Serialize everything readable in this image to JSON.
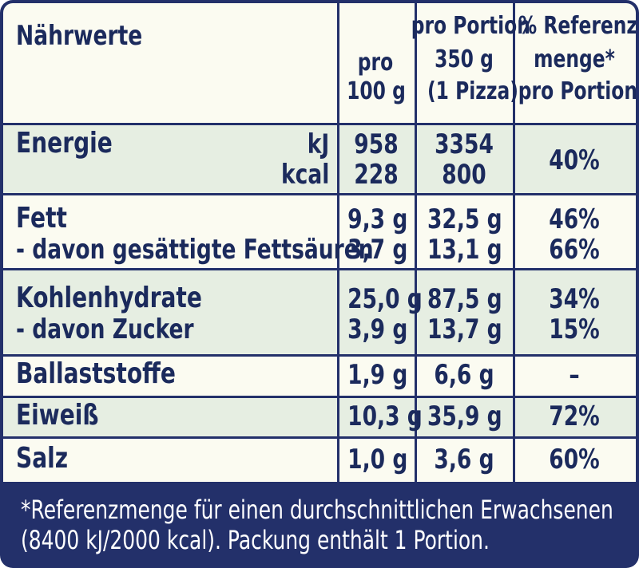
{
  "header": {
    "title": "Nährwerte",
    "col_100g_line1": "pro",
    "col_100g_line2": "100 g",
    "col_portion_line1": "pro Portion",
    "col_portion_line2": "350 g",
    "col_portion_line3": "(1 Pizza)",
    "col_ref_line1": "% Referenz-",
    "col_ref_line2": "menge*",
    "col_ref_line3": "pro Portion"
  },
  "rows": {
    "energie": {
      "label": "Energie",
      "unit_kj": "kJ",
      "unit_kcal": "kcal",
      "per100_kj": "958",
      "per100_kcal": "228",
      "portion_kj": "3354",
      "portion_kcal": "800",
      "ref": "40%"
    },
    "fett": {
      "label": "Fett",
      "per100": "9,3 g",
      "portion": "32,5 g",
      "ref": "46%",
      "sub_label": "- davon gesättigte Fettsäuren",
      "sub_per100": "3,7 g",
      "sub_portion": "13,1 g",
      "sub_ref": "66%"
    },
    "kohlenhydrate": {
      "label": "Kohlenhydrate",
      "per100": "25,0 g",
      "portion": "87,5 g",
      "ref": "34%",
      "sub_label": "- davon Zucker",
      "sub_per100": "3,9 g",
      "sub_portion": "13,7 g",
      "sub_ref": "15%"
    },
    "ballaststoffe": {
      "label": "Ballaststoffe",
      "per100": "1,9 g",
      "portion": "6,6 g",
      "ref": "–"
    },
    "eiweiss": {
      "label": "Eiweiß",
      "per100": "10,3 g",
      "portion": "35,9 g",
      "ref": "72%"
    },
    "salz": {
      "label": "Salz",
      "per100": "1,0 g",
      "portion": "3,6 g",
      "ref": "60%"
    }
  },
  "footer": {
    "line1": "*Referenzmenge für einen durchschnittlichen Erwachsenen",
    "line2": "(8400 kJ/2000 kcal). Packung enthält 1 Portion."
  },
  "colors": {
    "navy": "#23306a",
    "cream": "#fbfbf1",
    "band_green": "#e6eee2"
  }
}
